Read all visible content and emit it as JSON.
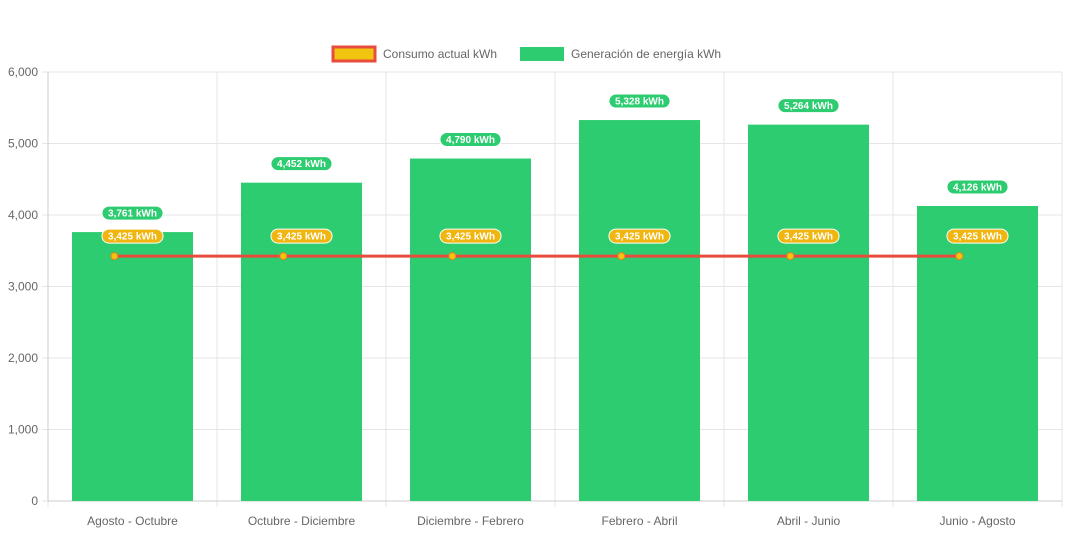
{
  "chart_data": {
    "type": "bar",
    "categories": [
      "Agosto - Octubre",
      "Octubre - Diciembre",
      "Diciembre - Febrero",
      "Febrero - Abril",
      "Abril - Junio",
      "Junio - Agosto"
    ],
    "series": [
      {
        "name": "Consumo actual kWh",
        "type": "line",
        "values": [
          3425,
          3425,
          3425,
          3425,
          3425,
          3425
        ],
        "labels": [
          "3,425 kWh",
          "3,425 kWh",
          "3,425 kWh",
          "3,425 kWh",
          "3,425 kWh",
          "3,425 kWh"
        ],
        "color": "#e74c3c",
        "fill": "#f1c40f",
        "label_fill": "#f1b50f"
      },
      {
        "name": "Generación de energía kWh",
        "type": "bar",
        "values": [
          3761,
          4452,
          4790,
          5328,
          5264,
          4126
        ],
        "labels": [
          "3,761 kWh",
          "4,452 kWh",
          "4,790 kWh",
          "5,328 kWh",
          "5,264 kWh",
          "4,126 kWh"
        ],
        "color": "#2ecc71"
      }
    ],
    "ylim": [
      0,
      6000
    ],
    "yticks": [
      0,
      1000,
      2000,
      3000,
      4000,
      5000,
      6000
    ],
    "ytick_labels": [
      "0",
      "1,000",
      "2,000",
      "3,000",
      "4,000",
      "5,000",
      "6,000"
    ],
    "grid": true,
    "legend": "top-center",
    "grid_color": "#e5e5e5"
  }
}
